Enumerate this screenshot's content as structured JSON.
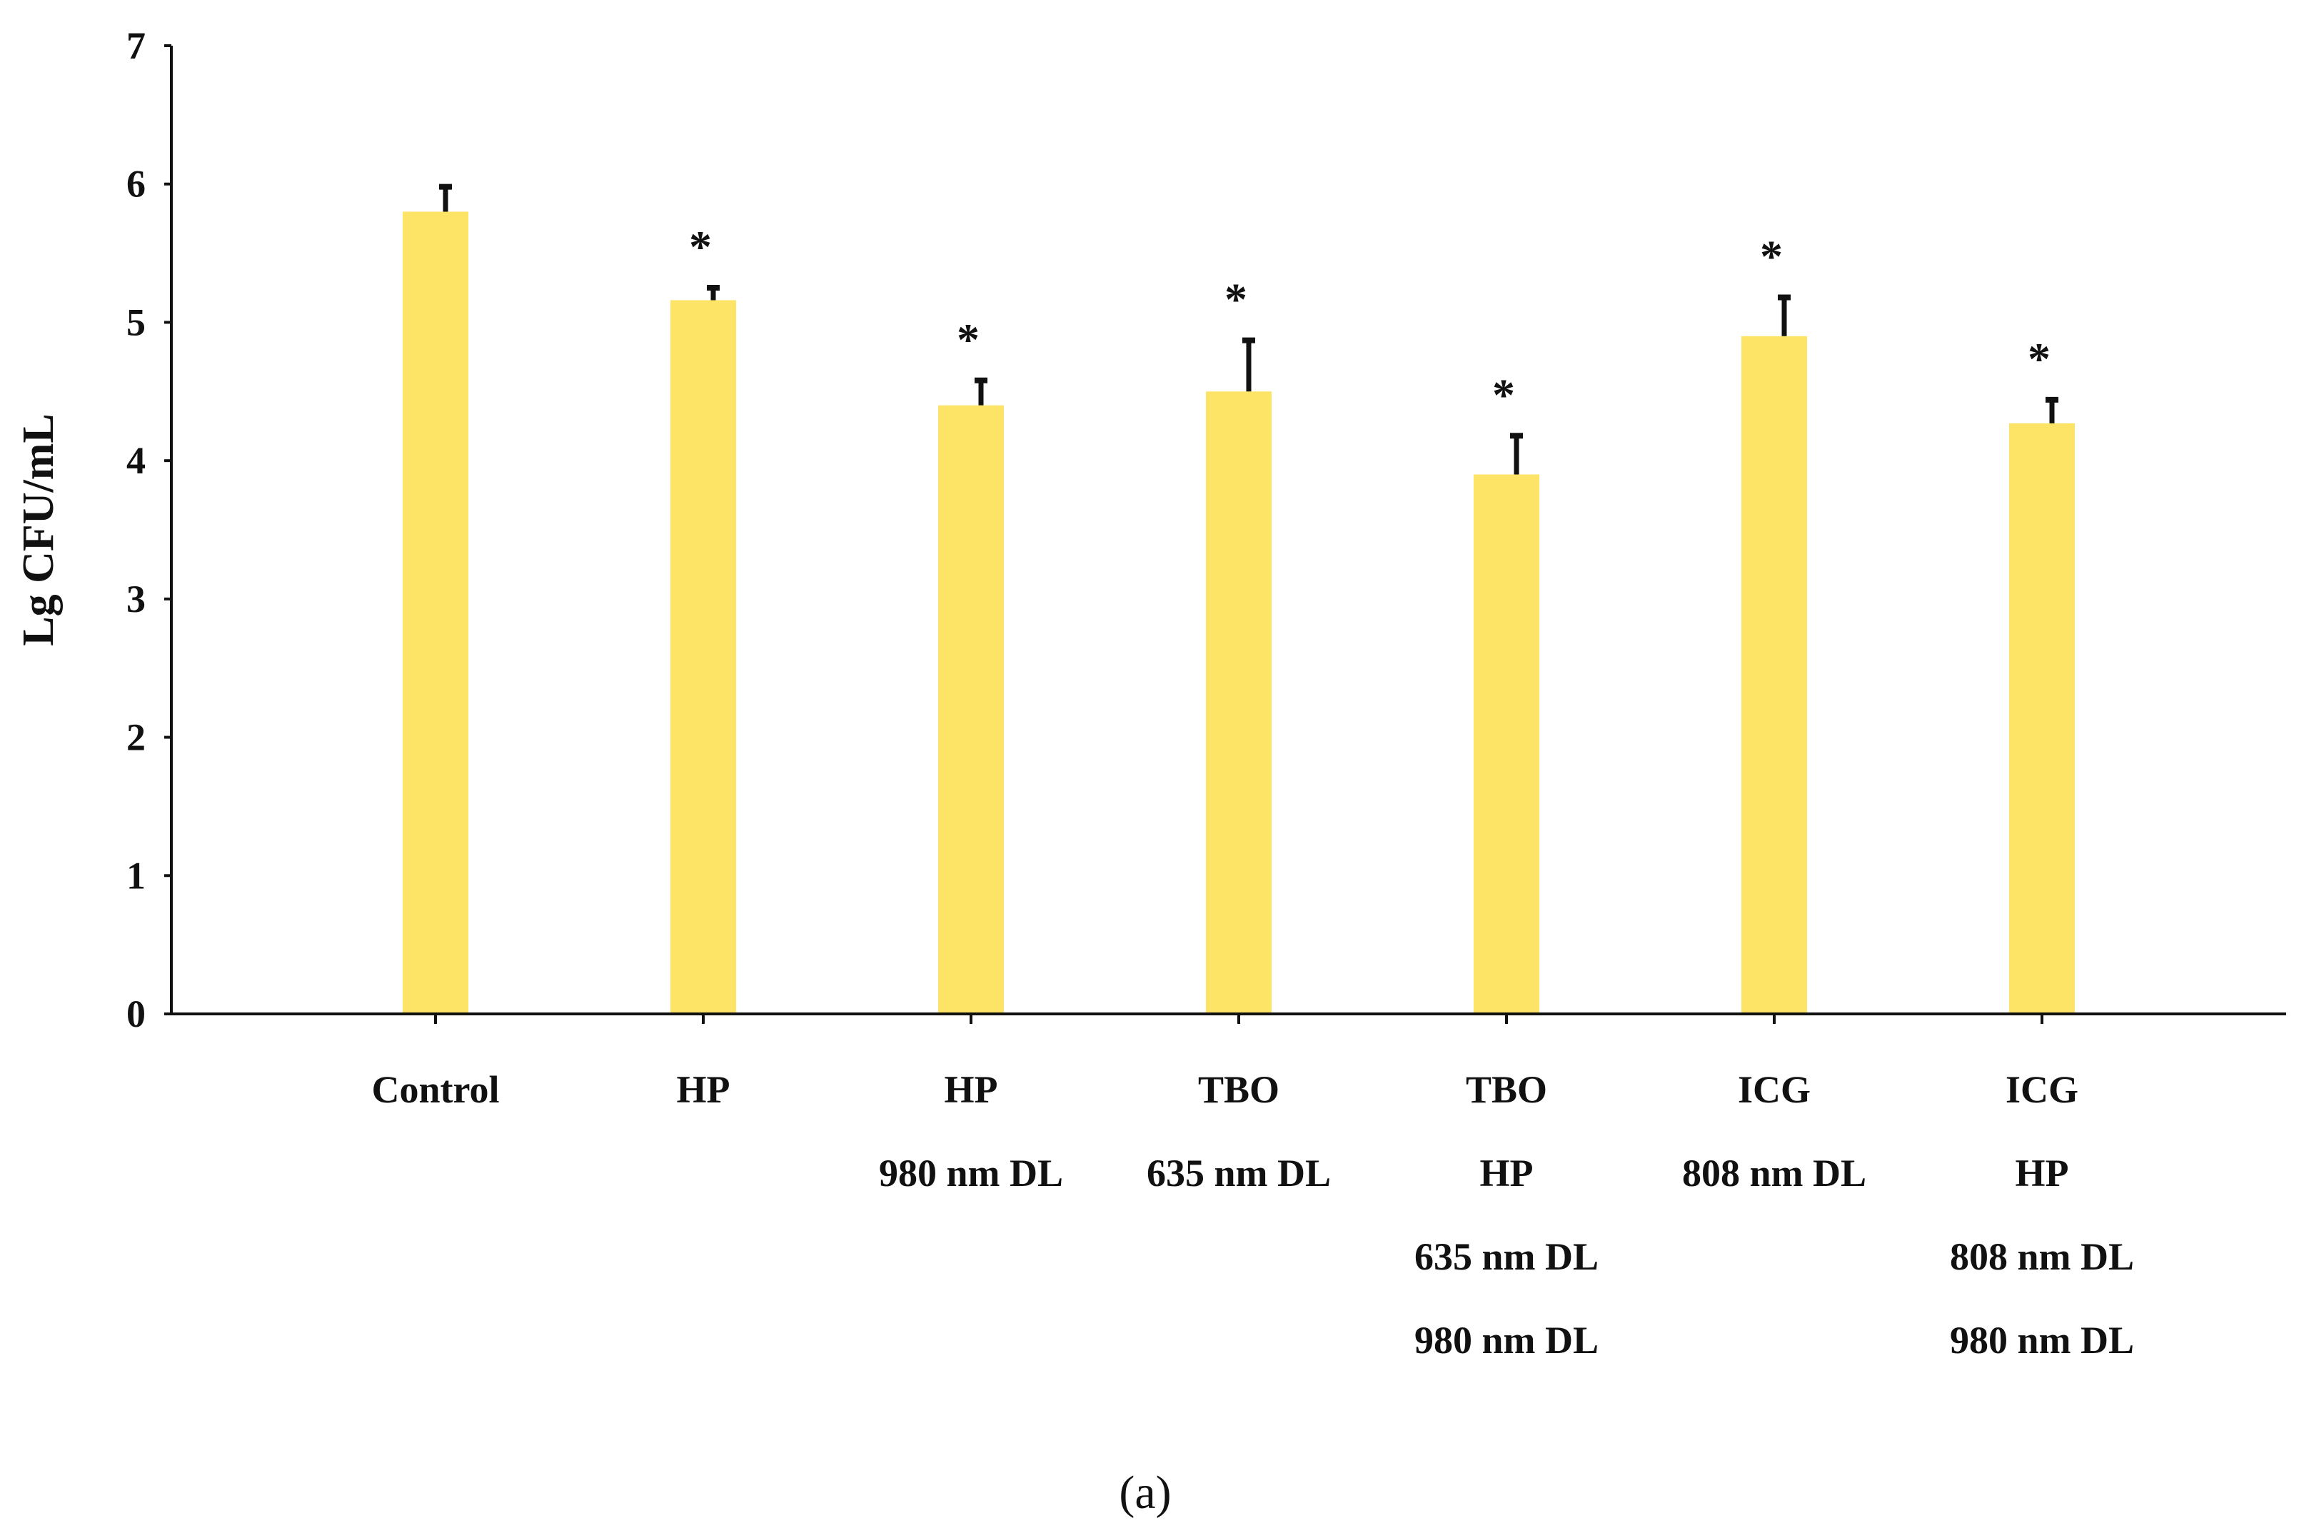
{
  "chart_data": {
    "type": "bar",
    "title": "",
    "xlabel": "",
    "ylabel": "Lg CFU/mL",
    "ylim": [
      0,
      7
    ],
    "yticks": [
      "0",
      "1",
      "2",
      "3",
      "4",
      "5",
      "6",
      "7"
    ],
    "categories": [
      [
        "Control"
      ],
      [
        "HP"
      ],
      [
        "HP",
        "980 nm DL"
      ],
      [
        "TBO",
        "635 nm DL"
      ],
      [
        "TBO",
        "HP",
        "635 nm DL",
        "980 nm DL"
      ],
      [
        "ICG",
        "808 nm DL"
      ],
      [
        "ICG",
        "HP",
        "808 nm DL",
        "980 nm DL"
      ]
    ],
    "series": [
      {
        "name": "Lg CFU/mL",
        "values": [
          5.8,
          5.16,
          4.4,
          4.5,
          3.9,
          4.9,
          4.27
        ],
        "error_upper": [
          0.18,
          0.09,
          0.18,
          0.37,
          0.28,
          0.28,
          0.17
        ],
        "color": "#fde466"
      }
    ],
    "significance_marker": "*",
    "significant": [
      false,
      true,
      true,
      true,
      true,
      true,
      true
    ],
    "grid": false,
    "legend": "none"
  },
  "caption": "(a)"
}
